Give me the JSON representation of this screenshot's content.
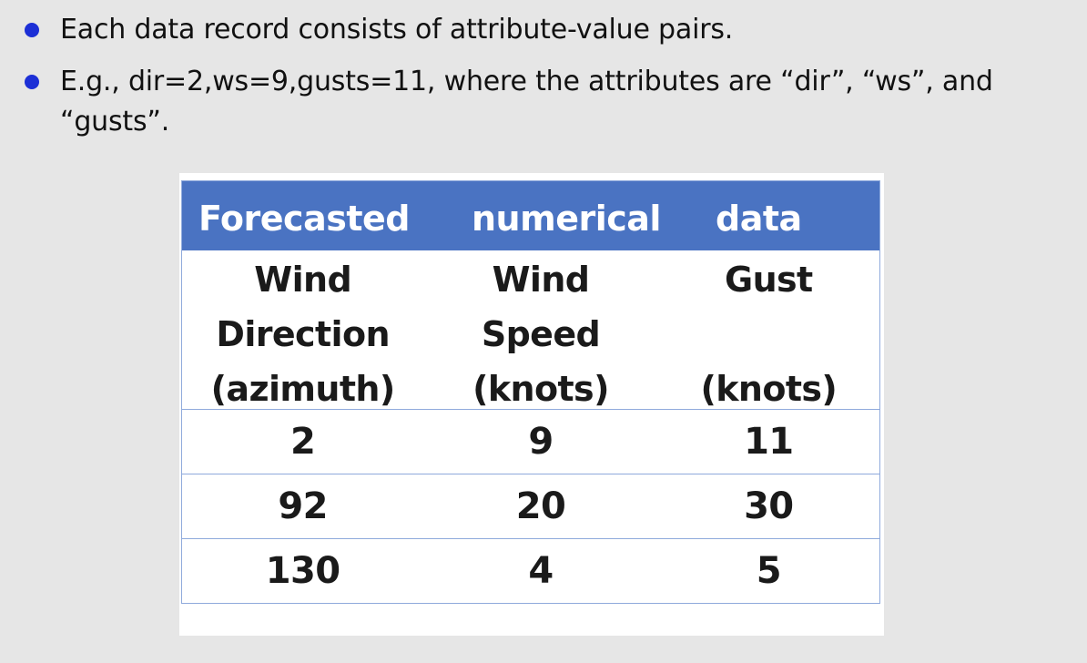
{
  "bullets": [
    "Each data record consists of attribute-value pairs.",
    "E.g., dir=2,ws=9,gusts=11, where the attributes are “dir”, “ws”, and “gusts”."
  ],
  "table": {
    "title_words": [
      "Forecasted",
      "numerical",
      "data"
    ],
    "columns": [
      {
        "line1": "Wind",
        "line2": "Direction",
        "line3": "(azimuth)"
      },
      {
        "line1": "Wind",
        "line2": "Speed",
        "line3": "(knots)"
      },
      {
        "line1": "Gust",
        "line2": "",
        "line3": "(knots)"
      }
    ],
    "rows": [
      [
        "2",
        "9",
        "11"
      ],
      [
        "92",
        "20",
        "30"
      ],
      [
        "130",
        "4",
        "5"
      ]
    ]
  }
}
